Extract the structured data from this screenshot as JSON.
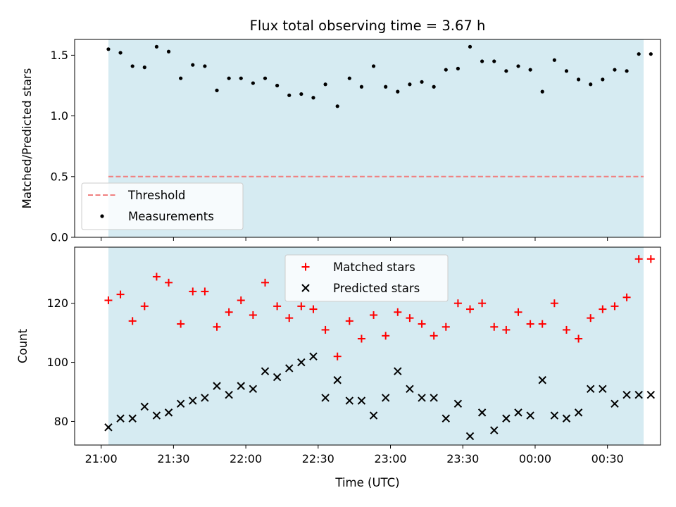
{
  "title": "Flux total observing time = 3.67 h",
  "colors": {
    "shade": "#add8e6",
    "threshold": "#f08080",
    "measurement": "#000000",
    "matched": "#ff0000",
    "predicted": "#000000"
  },
  "chart_data": [
    {
      "type": "scatter",
      "ylabel": "Matched/Predicted stars",
      "ylim": [
        0,
        1.63
      ],
      "yticks": [
        "0.0",
        "0.5",
        "1.0",
        "1.5"
      ],
      "ytick_values": [
        0,
        0.5,
        1.0,
        1.5
      ],
      "shaded_span": [
        3,
        225
      ],
      "threshold": {
        "name": "Threshold",
        "value": 0.5,
        "x_range": [
          3,
          225
        ]
      },
      "legend": {
        "placement": "lower-left",
        "entries": [
          "Threshold",
          "Measurements"
        ]
      },
      "series": [
        {
          "name": "Measurements",
          "x": [
            3,
            8,
            13,
            18,
            23,
            28,
            33,
            38,
            43,
            48,
            53,
            58,
            63,
            68,
            73,
            78,
            83,
            88,
            93,
            98,
            103,
            108,
            113,
            118,
            123,
            128,
            133,
            138,
            143,
            148,
            153,
            158,
            163,
            168,
            173,
            178,
            183,
            188,
            193,
            198,
            203,
            208,
            213,
            218,
            223,
            228
          ],
          "y": [
            1.55,
            1.52,
            1.41,
            1.4,
            1.57,
            1.53,
            1.31,
            1.42,
            1.41,
            1.21,
            1.31,
            1.31,
            1.27,
            1.31,
            1.25,
            1.17,
            1.18,
            1.15,
            1.26,
            1.08,
            1.31,
            1.24,
            1.41,
            1.24,
            1.2,
            1.26,
            1.28,
            1.24,
            1.38,
            1.39,
            1.57,
            1.45,
            1.45,
            1.37,
            1.41,
            1.38,
            1.2,
            1.46,
            1.37,
            1.3,
            1.26,
            1.3,
            1.38,
            1.37,
            1.51,
            1.51
          ]
        }
      ]
    },
    {
      "type": "scatter",
      "ylabel": "Count",
      "xlabel": "Time (UTC)",
      "ylim": [
        72,
        139
      ],
      "yticks": [
        "80",
        "100",
        "120"
      ],
      "ytick_values": [
        80,
        100,
        120
      ],
      "xticks": [
        "21:00",
        "21:30",
        "22:00",
        "22:30",
        "23:00",
        "23:30",
        "00:00",
        "00:30"
      ],
      "xtick_values": [
        0,
        30,
        60,
        90,
        120,
        150,
        180,
        210
      ],
      "xlim": [
        -11,
        232
      ],
      "shaded_span": [
        3,
        225
      ],
      "legend": {
        "placement": "upper-center",
        "entries": [
          "Matched stars",
          "Predicted stars"
        ]
      },
      "series": [
        {
          "name": "Matched stars",
          "x": [
            3,
            8,
            13,
            18,
            23,
            28,
            33,
            38,
            43,
            48,
            53,
            58,
            63,
            68,
            73,
            78,
            83,
            88,
            93,
            98,
            103,
            108,
            113,
            118,
            123,
            128,
            133,
            138,
            143,
            148,
            153,
            158,
            163,
            168,
            173,
            178,
            183,
            188,
            193,
            198,
            203,
            208,
            213,
            218,
            223,
            228
          ],
          "y": [
            121,
            123,
            114,
            119,
            129,
            127,
            113,
            124,
            124,
            112,
            117,
            121,
            116,
            127,
            119,
            115,
            119,
            118,
            111,
            102,
            114,
            108,
            116,
            109,
            117,
            115,
            113,
            109,
            112,
            120,
            118,
            120,
            112,
            111,
            117,
            113,
            113,
            120,
            111,
            108,
            115,
            118,
            119,
            122,
            135,
            135
          ]
        },
        {
          "name": "Predicted stars",
          "x": [
            3,
            8,
            13,
            18,
            23,
            28,
            33,
            38,
            43,
            48,
            53,
            58,
            63,
            68,
            73,
            78,
            83,
            88,
            93,
            98,
            103,
            108,
            113,
            118,
            123,
            128,
            133,
            138,
            143,
            148,
            153,
            158,
            163,
            168,
            173,
            178,
            183,
            188,
            193,
            198,
            203,
            208,
            213,
            218,
            223,
            228
          ],
          "y": [
            78,
            81,
            81,
            85,
            82,
            83,
            86,
            87,
            88,
            92,
            89,
            92,
            91,
            97,
            95,
            98,
            100,
            102,
            88,
            94,
            87,
            87,
            82,
            88,
            97,
            91,
            88,
            88,
            81,
            86,
            75,
            83,
            77,
            81,
            83,
            82,
            94,
            82,
            81,
            83,
            91,
            91,
            86,
            89,
            89,
            89
          ]
        }
      ]
    }
  ]
}
